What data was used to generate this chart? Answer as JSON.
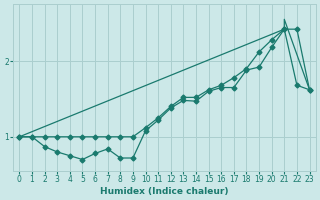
{
  "xlabel": "Humidex (Indice chaleur)",
  "background_color": "#cce8e8",
  "line_color": "#1a7a6e",
  "grid_color": "#aacece",
  "xlim": [
    -0.5,
    23.5
  ],
  "ylim": [
    0.55,
    2.75
  ],
  "yticks": [
    1,
    2
  ],
  "xticks": [
    0,
    1,
    2,
    3,
    4,
    5,
    6,
    7,
    8,
    9,
    10,
    11,
    12,
    13,
    14,
    15,
    16,
    17,
    18,
    19,
    20,
    21,
    22,
    23
  ],
  "series1_x": [
    0,
    1,
    2,
    3,
    4,
    5,
    6,
    7,
    8,
    9,
    10,
    11,
    12,
    13,
    14,
    15,
    16,
    17,
    18,
    19,
    20,
    21,
    22,
    23
  ],
  "series1_y": [
    1.0,
    1.0,
    0.87,
    0.8,
    0.75,
    0.7,
    0.78,
    0.84,
    0.72,
    0.72,
    1.08,
    1.22,
    1.38,
    1.48,
    1.47,
    1.6,
    1.65,
    1.65,
    1.88,
    1.92,
    2.18,
    2.42,
    1.68,
    1.62
  ],
  "series2_x": [
    0,
    1,
    2,
    3,
    4,
    5,
    6,
    7,
    8,
    9,
    10,
    11,
    12,
    13,
    14,
    15,
    16,
    17,
    18,
    19,
    20,
    21,
    22,
    23
  ],
  "series2_y": [
    1.0,
    1.0,
    1.0,
    1.0,
    1.0,
    1.0,
    1.0,
    1.0,
    1.0,
    1.0,
    1.12,
    1.25,
    1.4,
    1.52,
    1.52,
    1.62,
    1.68,
    1.78,
    1.9,
    2.12,
    2.28,
    2.42,
    2.42,
    1.62
  ],
  "series3_x": [
    0,
    21,
    21,
    23
  ],
  "series3_y": [
    1.0,
    2.42,
    2.55,
    1.62
  ],
  "markersize": 2.5,
  "linewidth": 0.9
}
